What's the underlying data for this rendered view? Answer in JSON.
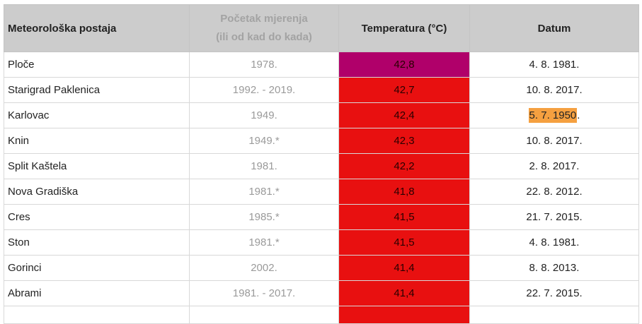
{
  "table": {
    "headers": {
      "station": "Meteorološka postaja",
      "start_line1": "Početak mjerenja",
      "start_line2": "(ili od kad do kada)",
      "temperature": "Temperatura (°C)",
      "date": "Datum"
    },
    "rows": [
      {
        "station": "Ploče",
        "start": "1978.",
        "temperature": "42,8",
        "temp_color": "#b0006a",
        "date": "4. 8. 1981.",
        "date_highlight": ""
      },
      {
        "station": "Starigrad Paklenica",
        "start": "1992. - 2019.",
        "temperature": "42,7",
        "temp_color": "#e81010",
        "date": "10. 8. 2017.",
        "date_highlight": ""
      },
      {
        "station": "Karlovac",
        "start": "1949.",
        "temperature": "42,4",
        "temp_color": "#e81010",
        "date": "5. 7. 1950",
        "date_suffix": ".",
        "date_highlight": "#f5a040"
      },
      {
        "station": "Knin",
        "start": "1949.*",
        "temperature": "42,3",
        "temp_color": "#e81010",
        "date": "10. 8. 2017.",
        "date_highlight": ""
      },
      {
        "station": "Split Kaštela",
        "start": "1981.",
        "temperature": "42,2",
        "temp_color": "#e81010",
        "date": "2. 8. 2017.",
        "date_highlight": ""
      },
      {
        "station": "Nova Gradiška",
        "start": "1981.*",
        "temperature": "41,8",
        "temp_color": "#e81010",
        "date": "22. 8. 2012.",
        "date_highlight": ""
      },
      {
        "station": "Cres",
        "start": "1985.*",
        "temperature": "41,5",
        "temp_color": "#e81010",
        "date": "21. 7. 2015.",
        "date_highlight": ""
      },
      {
        "station": "Ston",
        "start": "1981.*",
        "temperature": "41,5",
        "temp_color": "#e81010",
        "date": "4. 8. 1981.",
        "date_highlight": ""
      },
      {
        "station": "Gorinci",
        "start": "2002.",
        "temperature": "41,4",
        "temp_color": "#e81010",
        "date": "8. 8. 2013.",
        "date_highlight": ""
      },
      {
        "station": "Abrami",
        "start": "1981. - 2017.",
        "temperature": "41,4",
        "temp_color": "#e81010",
        "date": "22. 7. 2015.",
        "date_highlight": ""
      },
      {
        "station": "",
        "start": "",
        "temperature": "",
        "temp_color": "#e81010",
        "date": "",
        "date_highlight": ""
      }
    ]
  }
}
